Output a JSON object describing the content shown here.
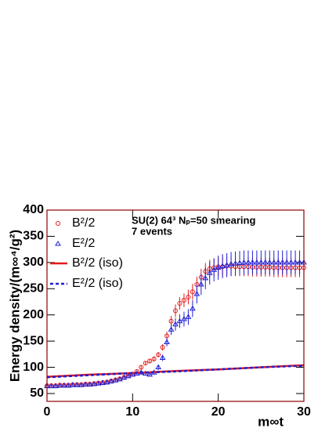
{
  "chart_data": {
    "type": "scatter",
    "ylabel": "Energy density/(m∞⁴/g²)",
    "xlabel": "m∞t",
    "annotations": [
      "SU(2) 64³ Nₚ=50 smearing",
      "7 events"
    ],
    "xlim": [
      0,
      30
    ],
    "xticks": [
      0,
      10,
      20,
      30
    ],
    "ylim": [
      35,
      400
    ],
    "yticks": [
      50,
      100,
      150,
      200,
      250,
      300,
      350,
      400
    ],
    "frame_color": "#8b0000",
    "series": [
      {
        "name": "B²/2",
        "color": "#e31a1c",
        "marker": "circle",
        "x": [
          0,
          0.5,
          1,
          1.5,
          2,
          2.5,
          3,
          3.5,
          4,
          4.5,
          5,
          5.5,
          6,
          6.5,
          7,
          7.5,
          8,
          8.5,
          9,
          9.5,
          10,
          10.5,
          11,
          11.5,
          12,
          12.5,
          13,
          13.5,
          14,
          14.5,
          15,
          15.5,
          16,
          16.5,
          17,
          17.5,
          18,
          18.5,
          19,
          19.5,
          20,
          20.5,
          21,
          21.5,
          22,
          22.5,
          23,
          23.5,
          24,
          24.5,
          25,
          25.5,
          26,
          26.5,
          27,
          27.5,
          28,
          28.5,
          29,
          29.5,
          30
        ],
        "values": [
          65,
          65,
          65,
          66,
          66,
          66,
          67,
          67,
          67,
          68,
          68,
          69,
          70,
          71,
          72,
          74,
          76,
          78,
          81,
          84,
          87,
          92,
          100,
          108,
          112,
          116,
          124,
          138,
          160,
          188,
          208,
          222,
          228,
          234,
          244,
          258,
          272,
          283,
          288,
          290,
          292,
          292,
          293,
          293,
          292,
          292,
          292,
          292,
          291,
          291,
          291,
          291,
          291,
          290,
          290,
          290,
          290,
          290,
          290,
          290,
          290
        ],
        "errors": [
          2,
          2,
          2,
          2,
          2,
          2,
          2,
          2,
          2,
          2,
          2,
          2,
          2,
          2,
          2,
          2,
          2,
          2,
          2,
          2,
          2,
          3,
          3,
          4,
          4,
          5,
          5,
          6,
          8,
          10,
          12,
          12,
          13,
          14,
          15,
          15,
          16,
          16,
          17,
          17,
          18,
          18,
          18,
          18,
          18,
          18,
          18,
          18,
          18,
          18,
          18,
          18,
          18,
          18,
          18,
          18,
          18,
          18,
          18,
          18,
          18
        ]
      },
      {
        "name": "E²/2",
        "color": "#1f1fd6",
        "marker": "triangle",
        "x": [
          0,
          0.5,
          1,
          1.5,
          2,
          2.5,
          3,
          3.5,
          4,
          4.5,
          5,
          5.5,
          6,
          6.5,
          7,
          7.5,
          8,
          8.5,
          9,
          9.5,
          10,
          10.5,
          11,
          11.5,
          12,
          12.5,
          13,
          13.5,
          14,
          14.5,
          15,
          15.5,
          16,
          16.5,
          17,
          17.5,
          18,
          18.5,
          19,
          19.5,
          20,
          20.5,
          21,
          21.5,
          22,
          22.5,
          23,
          23.5,
          24,
          24.5,
          25,
          25.5,
          26,
          26.5,
          27,
          27.5,
          28,
          28.5,
          29,
          29.5,
          30
        ],
        "values": [
          64,
          64,
          64,
          65,
          65,
          65,
          66,
          66,
          66,
          67,
          67,
          68,
          69,
          70,
          71,
          73,
          75,
          77,
          80,
          83,
          86,
          88,
          90,
          88,
          86,
          90,
          100,
          118,
          148,
          172,
          182,
          188,
          192,
          196,
          212,
          240,
          258,
          270,
          280,
          286,
          290,
          293,
          295,
          297,
          298,
          299,
          300,
          300,
          300,
          300,
          300,
          300,
          300,
          300,
          300,
          300,
          300,
          300,
          300,
          300,
          300
        ],
        "errors": [
          2,
          2,
          2,
          2,
          2,
          2,
          2,
          2,
          2,
          2,
          2,
          2,
          2,
          2,
          2,
          2,
          2,
          2,
          2,
          2,
          2,
          3,
          3,
          3,
          3,
          4,
          5,
          6,
          8,
          10,
          12,
          13,
          14,
          15,
          16,
          18,
          20,
          21,
          22,
          22,
          23,
          23,
          23,
          23,
          23,
          23,
          23,
          23,
          23,
          23,
          23,
          23,
          23,
          23,
          23,
          23,
          23,
          23,
          23,
          23,
          23
        ]
      },
      {
        "name": "B²/2 (iso)",
        "color": "#e31a1c",
        "marker": "line",
        "dash": false,
        "x": [
          0,
          5,
          10,
          15,
          20,
          25,
          30
        ],
        "values": [
          82,
          86,
          89,
          93,
          96,
          100,
          104
        ]
      },
      {
        "name": "E²/2 (iso)",
        "color": "#1f1fd6",
        "marker": "line",
        "dash": true,
        "x": [
          0,
          5,
          10,
          15,
          20,
          25,
          30
        ],
        "values": [
          81,
          85,
          89,
          92,
          96,
          100,
          103
        ]
      }
    ]
  }
}
